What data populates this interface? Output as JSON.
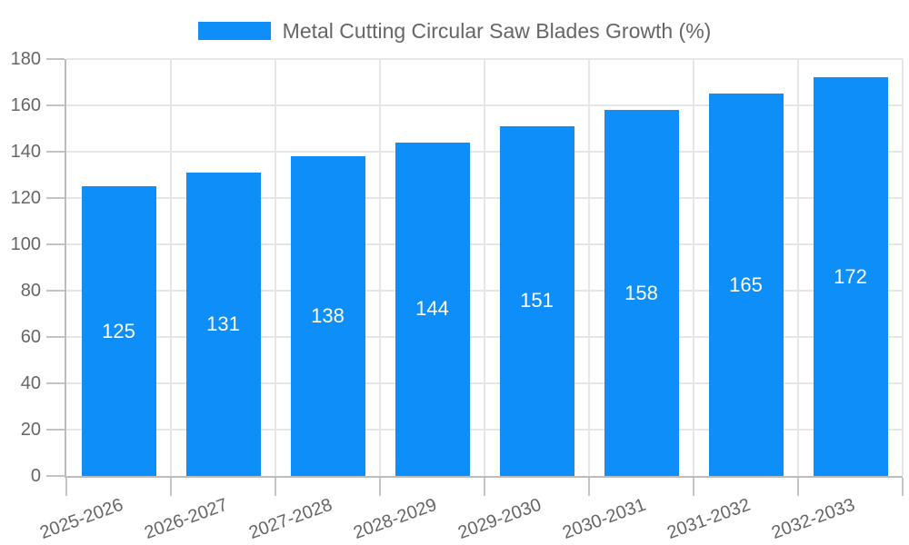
{
  "chart_data": {
    "type": "bar",
    "title": "Metal Cutting Circular Saw Blades Growth (%)",
    "series_name": "Metal Cutting Circular Saw Blades Growth (%)",
    "categories": [
      "2025-2026",
      "2026-2027",
      "2027-2028",
      "2028-2029",
      "2029-2030",
      "2030-2031",
      "2031-2032",
      "2032-2033"
    ],
    "values": [
      125,
      131,
      138,
      144,
      151,
      158,
      165,
      172
    ],
    "xlabel": "",
    "ylabel": "",
    "ylim": [
      0,
      180
    ],
    "ytick_step": 20,
    "yticks": [
      0,
      20,
      40,
      60,
      80,
      100,
      120,
      140,
      160,
      180
    ],
    "grid": "on",
    "legend_position": "top-center",
    "value_labels": "inside-middle",
    "colors": {
      "bar": "#0d8ef8",
      "value_label": "#ffffff",
      "axis_label": "#666666",
      "legend_label": "#666666",
      "gridline": "#e6e6e6",
      "axis_line": "#bcbcbc",
      "tick": "#c4c4c4",
      "background": "#ffffff"
    }
  }
}
